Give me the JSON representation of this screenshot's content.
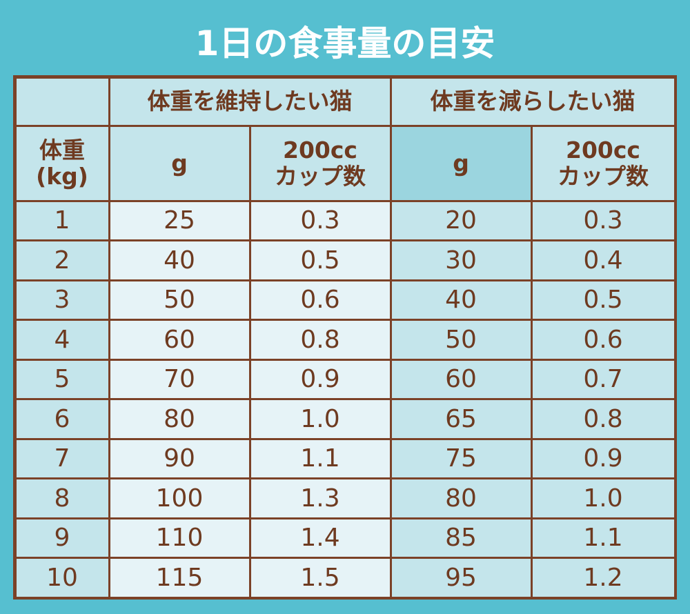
{
  "title": "1日の食事量の目安",
  "table": {
    "group_headers": [
      "体重を維持したい猫",
      "体重を減らしたい猫"
    ],
    "column_headers": [
      "体重\n(kg)",
      "g",
      "200cc\nカップ数",
      "g",
      "200cc\nカップ数"
    ],
    "rows": [
      [
        "1",
        "25",
        "0.3",
        "20",
        "0.3"
      ],
      [
        "2",
        "40",
        "0.5",
        "30",
        "0.4"
      ],
      [
        "3",
        "50",
        "0.6",
        "40",
        "0.5"
      ],
      [
        "4",
        "60",
        "0.8",
        "50",
        "0.6"
      ],
      [
        "5",
        "70",
        "0.9",
        "60",
        "0.7"
      ],
      [
        "6",
        "80",
        "1.0",
        "65",
        "0.8"
      ],
      [
        "7",
        "90",
        "1.1",
        "75",
        "0.9"
      ],
      [
        "8",
        "100",
        "1.3",
        "80",
        "1.0"
      ],
      [
        "9",
        "110",
        "1.4",
        "85",
        "1.1"
      ],
      [
        "10",
        "115",
        "1.5",
        "95",
        "1.2"
      ]
    ]
  }
}
